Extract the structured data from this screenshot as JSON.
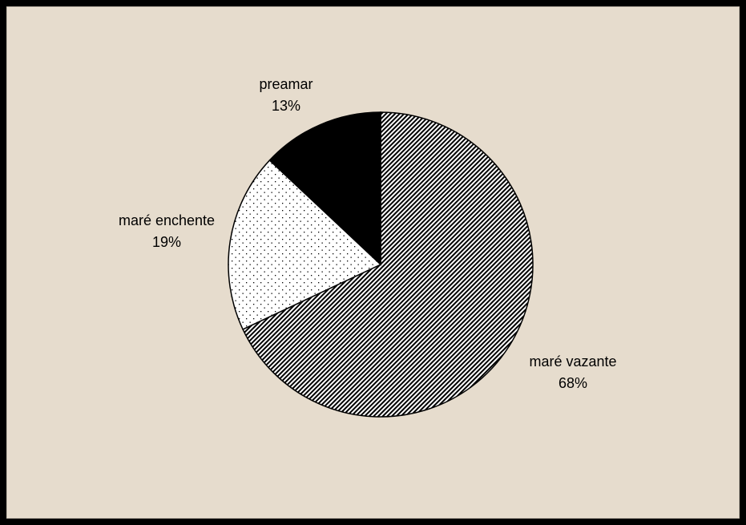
{
  "chart_data": {
    "type": "pie",
    "slices": [
      {
        "label": "maré vazante",
        "value": 68,
        "value_label": "68%",
        "pattern": "diagonal-stripes"
      },
      {
        "label": "maré enchente",
        "value": 19,
        "value_label": "19%",
        "pattern": "dots"
      },
      {
        "label": "preamar",
        "value": 13,
        "value_label": "13%",
        "pattern": "solid-black"
      }
    ],
    "start_angle": "12 o'clock",
    "direction": "clockwise",
    "legend": "none",
    "background_color": "#e6dccd",
    "frame_color": "#000000"
  }
}
